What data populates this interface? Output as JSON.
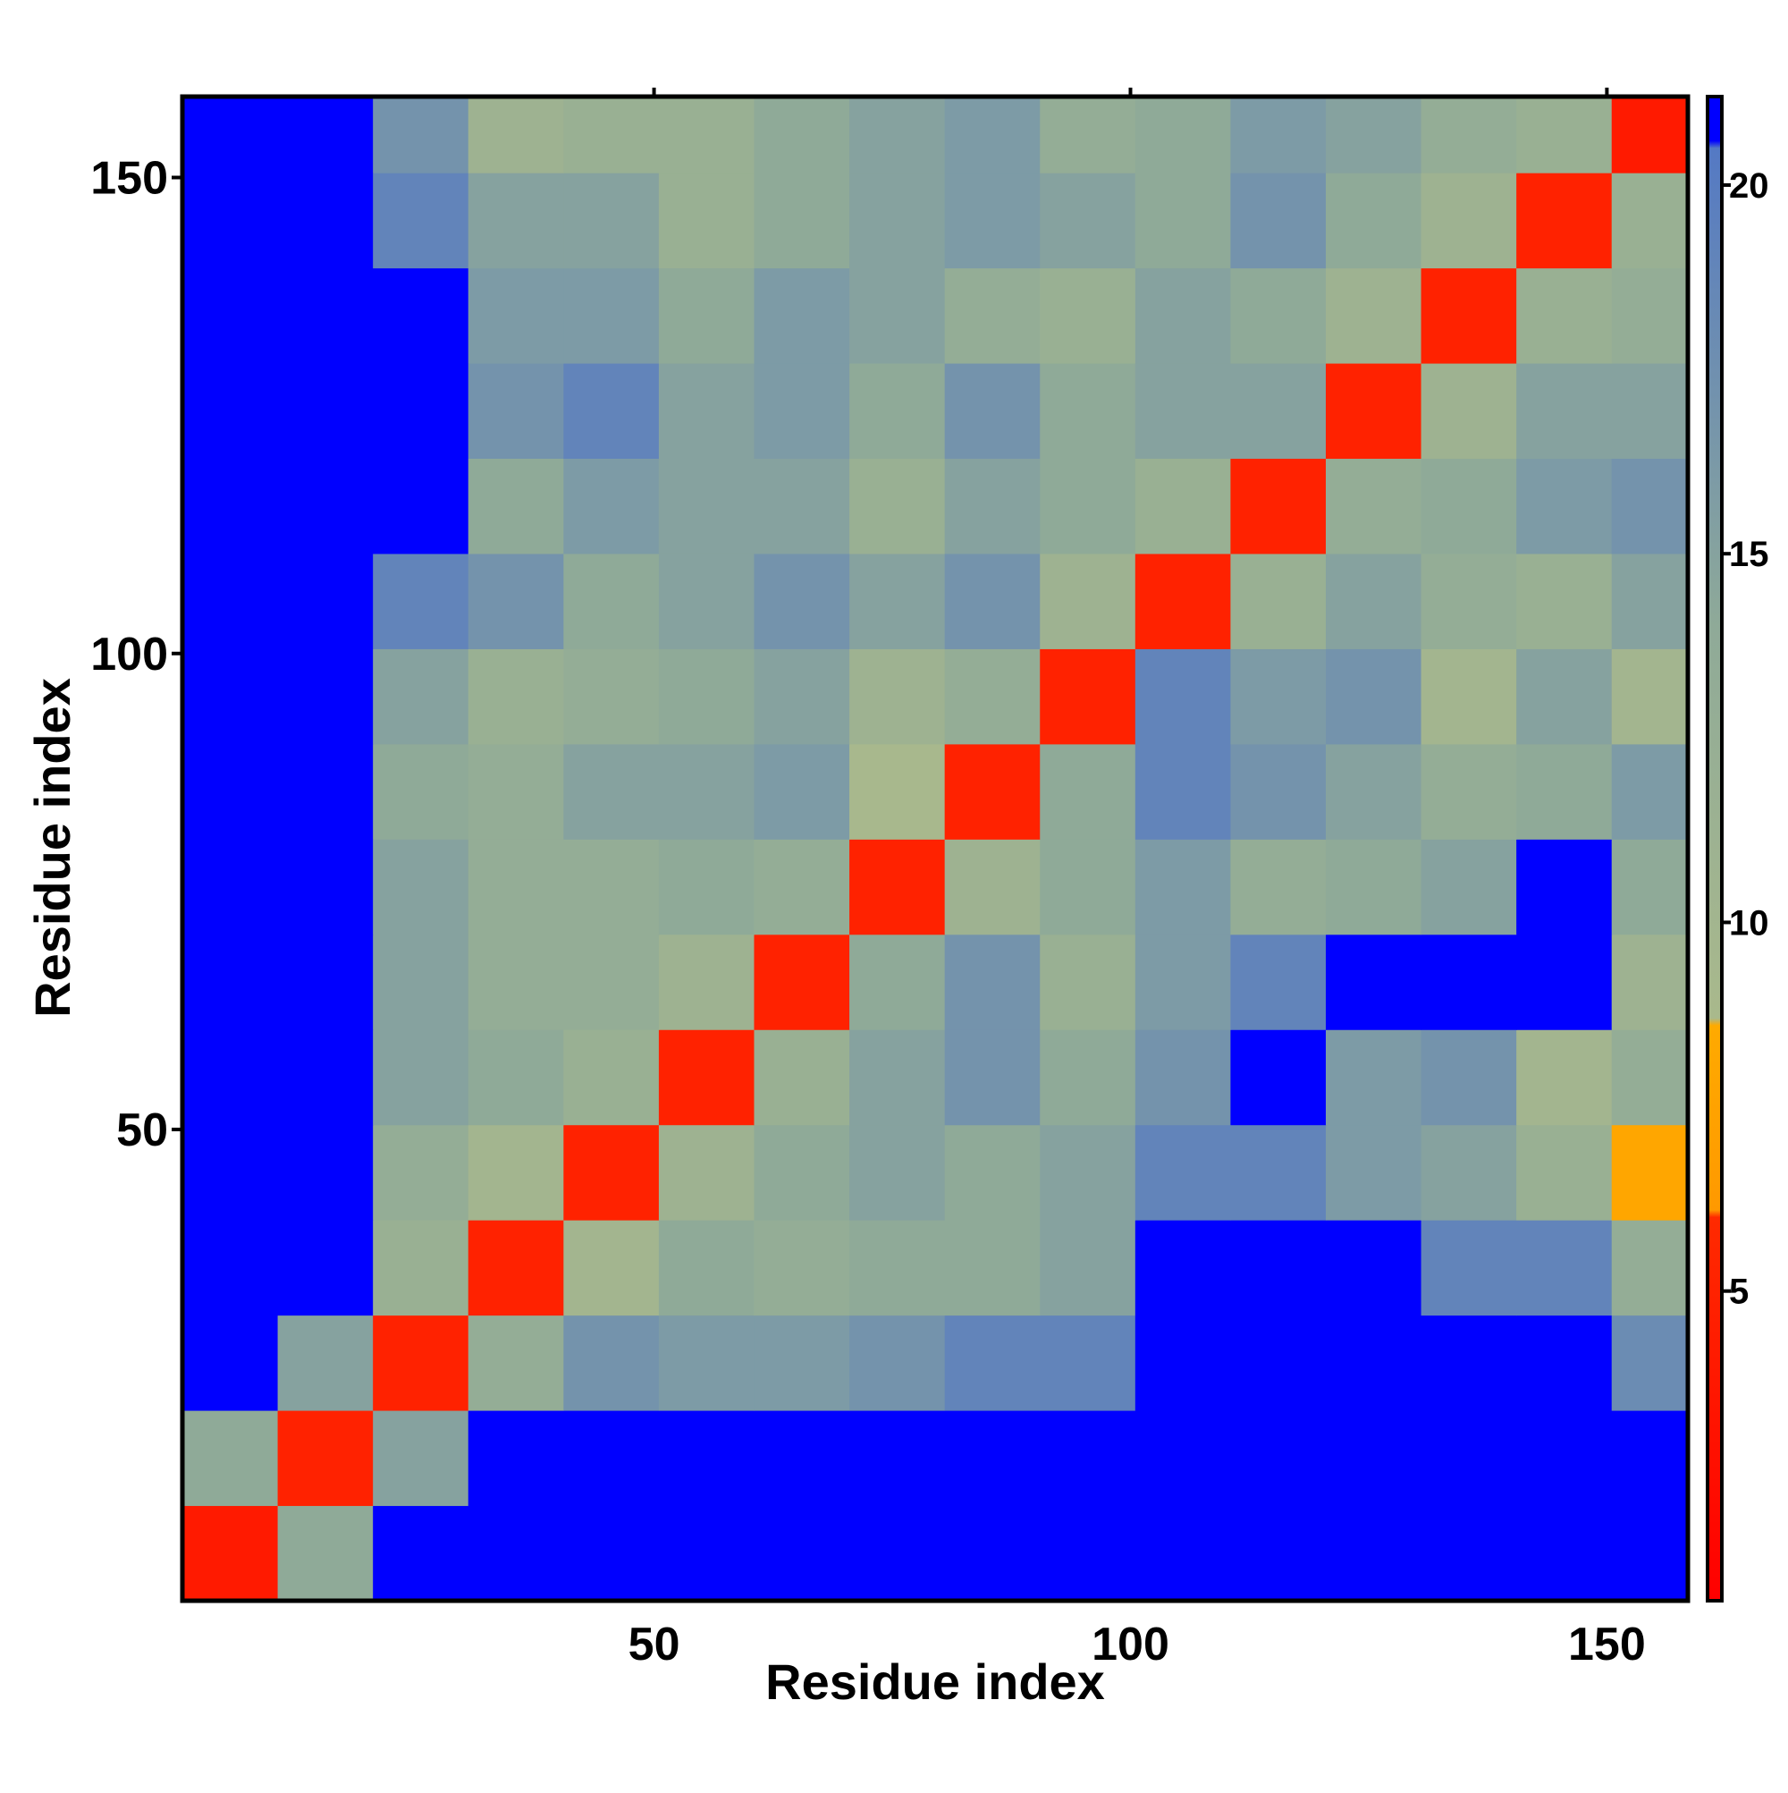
{
  "chart_data": {
    "type": "heatmap",
    "x_title": "Residue index",
    "y_title": "Residue index",
    "x_edges": [
      0.5,
      10.5,
      20.5,
      30.5,
      40.5,
      50.5,
      60.5,
      70.5,
      80.5,
      90.5,
      100.5,
      110.5,
      120.5,
      130.5,
      140.5,
      150.5,
      158.5
    ],
    "y_edges": [
      0.5,
      10.5,
      20.5,
      30.5,
      40.5,
      50.5,
      60.5,
      70.5,
      80.5,
      90.5,
      100.5,
      110.5,
      120.5,
      130.5,
      140.5,
      150.5,
      158.5
    ],
    "z": [
      [
        4,
        14,
        21,
        21,
        21,
        21,
        21,
        21,
        21,
        21,
        21,
        21,
        21,
        21,
        21,
        21
      ],
      [
        14,
        5,
        15,
        21,
        21,
        21,
        21,
        21,
        21,
        21,
        21,
        21,
        21,
        21,
        21,
        21
      ],
      [
        21,
        15,
        5,
        13,
        17,
        16,
        16,
        17,
        19,
        19,
        21,
        21,
        21,
        21,
        21,
        18
      ],
      [
        21,
        21,
        12,
        5,
        10,
        14,
        13,
        14,
        14,
        15,
        21,
        21,
        21,
        19,
        19,
        13
      ],
      [
        21,
        21,
        13,
        10,
        5,
        11,
        14,
        15,
        14,
        15,
        19,
        19,
        16,
        15,
        12,
        8
      ],
      [
        21,
        21,
        15,
        14,
        12,
        5,
        12,
        15,
        17,
        14,
        17,
        21,
        16,
        17,
        10,
        13
      ],
      [
        21,
        21,
        15,
        13,
        13,
        11,
        5,
        14,
        17,
        12,
        16,
        19,
        21,
        21,
        21,
        11
      ],
      [
        21,
        21,
        15,
        13,
        13,
        14,
        13,
        5,
        11,
        14,
        16,
        13,
        14,
        15,
        21,
        14
      ],
      [
        21,
        21,
        14,
        13,
        15,
        15,
        16,
        9,
        5,
        14,
        19,
        17,
        15,
        13,
        14,
        16
      ],
      [
        21,
        21,
        15,
        12,
        13,
        14,
        15,
        11,
        13,
        5,
        19,
        16,
        17,
        10,
        15,
        10
      ],
      [
        21,
        21,
        19,
        17,
        14,
        15,
        17,
        15,
        17,
        11,
        5,
        12,
        15,
        13,
        12,
        15
      ],
      [
        21,
        21,
        21,
        14,
        16,
        15,
        15,
        12,
        15,
        14,
        12,
        5,
        13,
        14,
        16,
        17
      ],
      [
        21,
        21,
        21,
        17,
        19,
        15,
        16,
        14,
        17,
        14,
        15,
        15,
        5,
        11,
        15,
        15
      ],
      [
        21,
        21,
        21,
        16,
        16,
        14,
        16,
        15,
        13,
        12,
        15,
        14,
        11,
        5,
        12,
        13
      ],
      [
        21,
        21,
        19,
        15,
        15,
        12,
        14,
        15,
        16,
        15,
        14,
        17,
        14,
        11,
        5,
        12
      ],
      [
        21,
        21,
        17,
        11,
        12,
        12,
        14,
        15,
        16,
        13,
        14,
        16,
        15,
        13,
        12,
        4
      ]
    ],
    "xlim": [
      0.5,
      158.5
    ],
    "ylim": [
      0.5,
      158.5
    ],
    "xticks": [
      50,
      100,
      150
    ],
    "yticks": [
      50,
      100,
      150
    ],
    "zlim": [
      0.8,
      21.2
    ],
    "zticks": [
      5,
      10,
      15,
      20
    ],
    "colorscale": [
      [
        0.8,
        "#ff0000"
      ],
      [
        6,
        "#ff2a00"
      ],
      [
        6.1,
        "#ff9900"
      ],
      [
        8.6,
        "#ffaa00"
      ],
      [
        8.7,
        "#a9b98c"
      ],
      [
        14,
        "#8faa98"
      ],
      [
        20.5,
        "#5479c4"
      ],
      [
        20.6,
        "#0000ff"
      ],
      [
        21.2,
        "#0000ff"
      ]
    ]
  }
}
